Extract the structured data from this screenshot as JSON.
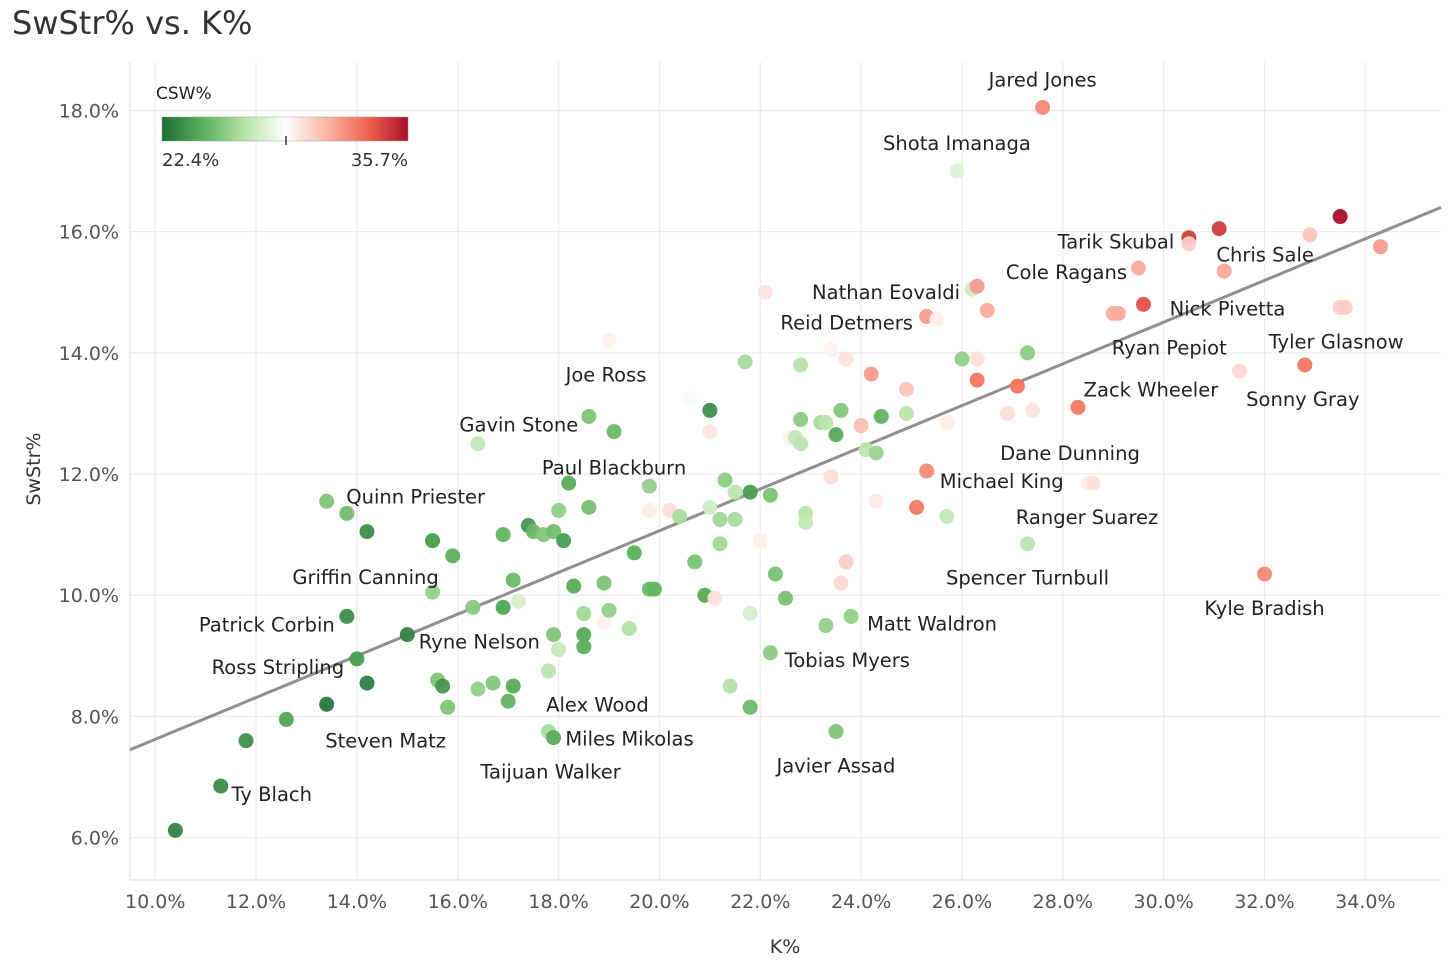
{
  "chart_data": {
    "type": "scatter",
    "title": "SwStr% vs. K%",
    "xlabel": "K%",
    "ylabel": "SwStr%",
    "xlim": [
      9.5,
      35.5
    ],
    "ylim": [
      5.3,
      18.8
    ],
    "xticks": [
      10,
      12,
      14,
      16,
      18,
      20,
      22,
      24,
      26,
      28,
      30,
      32,
      34
    ],
    "xtick_labels": [
      "10.0%",
      "12.0%",
      "14.0%",
      "16.0%",
      "18.0%",
      "20.0%",
      "22.0%",
      "24.0%",
      "26.0%",
      "28.0%",
      "30.0%",
      "32.0%",
      "34.0%"
    ],
    "yticks": [
      6,
      8,
      10,
      12,
      14,
      16,
      18
    ],
    "ytick_labels": [
      "6.0%",
      "8.0%",
      "10.0%",
      "12.0%",
      "14.0%",
      "16.0%",
      "18.0%"
    ],
    "grid": true,
    "trendline": {
      "x1": 9.5,
      "y1": 7.45,
      "x2": 35.5,
      "y2": 16.4
    },
    "legend": {
      "title": "CSW%",
      "min_label": "22.4%",
      "max_label": "35.7%",
      "min": 22.4,
      "max": 35.7,
      "mid": 29.0,
      "colors": [
        "#1e6b38",
        "#5bb05b",
        "#b6e3a6",
        "#ffffff",
        "#fbb6a8",
        "#f0654f",
        "#a8102a"
      ]
    },
    "points": [
      {
        "name": "Jared Jones",
        "x": 27.6,
        "y": 18.05,
        "c": 32.5,
        "label_dx": 0,
        "label_anchor": "middle",
        "label_dy": -28
      },
      {
        "name": "Shota Imanaga",
        "x": 25.9,
        "y": 17.0,
        "c": 28.0,
        "label_dx": 0,
        "label_anchor": "middle",
        "label_dy": -28
      },
      {
        "name": "Chris Sale",
        "x": 31.1,
        "y": 16.05,
        "c": 34.5,
        "label_dx": 46,
        "label_anchor": "middle",
        "label_dy": 26
      },
      {
        "name": "Tarik Skubal",
        "x": 30.5,
        "y": 15.9,
        "c": 34.5,
        "label_dx": -73,
        "label_anchor": "middle",
        "label_dy": 4
      },
      {
        "name": "Cole Ragans",
        "x": 29.5,
        "y": 15.4,
        "c": 31.5,
        "label_dx": -72,
        "label_anchor": "middle",
        "label_dy": 4
      },
      {
        "name": "Nick Pivetta",
        "x": 29.6,
        "y": 14.8,
        "c": 34.0,
        "label_dx": 84,
        "label_anchor": "middle",
        "label_dy": 4
      },
      {
        "name": "Nathan Eovaldi",
        "x": 26.2,
        "y": 15.05,
        "c": 27.5,
        "label_dx": -86,
        "label_anchor": "middle",
        "label_dy": 3
      },
      {
        "name": "Reid Detmers",
        "x": 25.3,
        "y": 14.6,
        "c": 32.0,
        "label_dx": -80,
        "label_anchor": "middle",
        "label_dy": 6
      },
      {
        "name": "Ryan Pepiot",
        "x": 29.0,
        "y": 14.65,
        "c": 31.5,
        "label_dx": 56,
        "label_anchor": "middle",
        "label_dy": 34
      },
      {
        "name": "Tyler Glasnow",
        "x": 33.5,
        "y": 14.75,
        "c": 30.5,
        "label_dx": -4,
        "label_anchor": "middle",
        "label_dy": 34
      },
      {
        "name": "Sonny Gray",
        "x": 32.8,
        "y": 13.8,
        "c": 33.0,
        "label_dx": -2,
        "label_anchor": "middle",
        "label_dy": 34
      },
      {
        "name": "Zack Wheeler",
        "x": 28.3,
        "y": 13.1,
        "c": 33.0,
        "label_dx": 73,
        "label_anchor": "middle",
        "label_dy": -18
      },
      {
        "name": "Dane Dunning",
        "x": 28.3,
        "y": 12.35,
        "c": 29.5,
        "label_dx": -8,
        "label_anchor": "middle",
        "label_dy": 0,
        "hidden_point": true
      },
      {
        "name": "Michael King",
        "x": 25.3,
        "y": 12.05,
        "c": 32.5,
        "label_dx": 75,
        "label_anchor": "middle",
        "label_dy": 10
      },
      {
        "name": "Ranger Suarez",
        "x": 28.5,
        "y": 11.85,
        "c": 29.6,
        "label_dx": -1,
        "label_anchor": "middle",
        "label_dy": 34
      },
      {
        "name": "Spencer Turnbull",
        "x": 27.3,
        "y": 10.85,
        "c": 27.0,
        "label_dx": 0,
        "label_anchor": "middle",
        "label_dy": 34
      },
      {
        "name": "Kyle Bradish",
        "x": 32.0,
        "y": 10.35,
        "c": 32.5,
        "label_dx": 0,
        "label_anchor": "middle",
        "label_dy": 34
      },
      {
        "name": "Matt Waldron",
        "x": 23.8,
        "y": 9.65,
        "c": 26.0,
        "label_dx": 81,
        "label_anchor": "middle",
        "label_dy": 7
      },
      {
        "name": "Tobias Myers",
        "x": 22.2,
        "y": 9.05,
        "c": 25.8,
        "label_dx": 77,
        "label_anchor": "middle",
        "label_dy": 7
      },
      {
        "name": "Javier Assad",
        "x": 23.5,
        "y": 7.75,
        "c": 25.5,
        "label_dx": 0,
        "label_anchor": "middle",
        "label_dy": 34
      },
      {
        "name": "Alex Wood",
        "x": 20.0,
        "y": 8.2,
        "c": 28.0,
        "label_dx": -62,
        "label_anchor": "middle",
        "label_dy": 0,
        "hidden_point": true
      },
      {
        "name": "Miles Mikolas",
        "x": 17.8,
        "y": 7.75,
        "c": 26.5,
        "label_dx": 81,
        "label_anchor": "middle",
        "label_dy": 7
      },
      {
        "name": "Taijuan Walker",
        "x": 17.9,
        "y": 7.65,
        "c": 24.5,
        "label_dx": -3,
        "label_anchor": "middle",
        "label_dy": 34
      },
      {
        "name": "Joe Ross",
        "x": 19.0,
        "y": 14.2,
        "c": 29.5,
        "label_dx": -3,
        "label_anchor": "middle",
        "label_dy": 34
      },
      {
        "name": "Gavin Stone",
        "x": 18.6,
        "y": 12.95,
        "c": 25.5,
        "label_dx": -70,
        "label_anchor": "middle",
        "label_dy": 8
      },
      {
        "name": "Paul Blackburn",
        "x": 19.1,
        "y": 12.7,
        "c": 25.0,
        "label_dx": 0,
        "label_anchor": "middle",
        "label_dy": 36
      },
      {
        "name": "Quinn Priester",
        "x": 13.4,
        "y": 11.55,
        "c": 25.5,
        "label_dx": 89,
        "label_anchor": "middle",
        "label_dy": -5
      },
      {
        "name": "Griffin Canning",
        "x": 15.5,
        "y": 10.05,
        "c": 26.0,
        "label_dx": -67,
        "label_anchor": "middle",
        "label_dy": -15
      },
      {
        "name": "Patrick Corbin",
        "x": 13.8,
        "y": 9.65,
        "c": 23.5,
        "label_dx": -80,
        "label_anchor": "middle",
        "label_dy": 8
      },
      {
        "name": "Ryne Nelson",
        "x": 15.0,
        "y": 9.35,
        "c": 23.2,
        "label_dx": 72,
        "label_anchor": "middle",
        "label_dy": 7
      },
      {
        "name": "Ross Stripling",
        "x": 14.0,
        "y": 8.95,
        "c": 24.0,
        "label_dx": -79,
        "label_anchor": "middle",
        "label_dy": 8
      },
      {
        "name": "Steven Matz",
        "x": 13.4,
        "y": 8.2,
        "c": 22.8,
        "label_dx": 59,
        "label_anchor": "middle",
        "label_dy": 36
      },
      {
        "name": "Ty Blach",
        "x": 11.3,
        "y": 6.85,
        "c": 23.5,
        "label_dx": 51,
        "label_anchor": "middle",
        "label_dy": 8
      },
      {
        "name": "",
        "x": 10.4,
        "y": 6.12,
        "c": 23.2
      },
      {
        "name": "",
        "x": 11.8,
        "y": 7.6,
        "c": 23.6
      },
      {
        "name": "",
        "x": 12.6,
        "y": 7.95,
        "c": 24.3
      },
      {
        "name": "",
        "x": 14.2,
        "y": 8.55,
        "c": 23.0
      },
      {
        "name": "",
        "x": 15.6,
        "y": 8.6,
        "c": 25.5
      },
      {
        "name": "",
        "x": 15.7,
        "y": 8.5,
        "c": 23.8
      },
      {
        "name": "",
        "x": 15.8,
        "y": 8.15,
        "c": 25.5
      },
      {
        "name": "",
        "x": 16.4,
        "y": 8.45,
        "c": 26.0
      },
      {
        "name": "",
        "x": 16.7,
        "y": 8.55,
        "c": 25.6
      },
      {
        "name": "",
        "x": 17.0,
        "y": 8.25,
        "c": 24.8
      },
      {
        "name": "",
        "x": 17.1,
        "y": 8.5,
        "c": 24.5
      },
      {
        "name": "",
        "x": 17.8,
        "y": 8.75,
        "c": 27.0
      },
      {
        "name": "",
        "x": 17.9,
        "y": 9.35,
        "c": 25.5
      },
      {
        "name": "",
        "x": 18.0,
        "y": 9.1,
        "c": 27.3
      },
      {
        "name": "",
        "x": 18.5,
        "y": 9.35,
        "c": 24.5
      },
      {
        "name": "",
        "x": 18.5,
        "y": 9.15,
        "c": 24.6
      },
      {
        "name": "",
        "x": 18.5,
        "y": 9.7,
        "c": 26.3
      },
      {
        "name": "",
        "x": 18.9,
        "y": 9.55,
        "c": 29.5
      },
      {
        "name": "",
        "x": 19.0,
        "y": 9.75,
        "c": 26.0
      },
      {
        "name": "",
        "x": 19.4,
        "y": 9.45,
        "c": 26.8
      },
      {
        "name": "",
        "x": 16.3,
        "y": 9.8,
        "c": 25.7
      },
      {
        "name": "",
        "x": 16.9,
        "y": 9.8,
        "c": 24.3
      },
      {
        "name": "",
        "x": 17.2,
        "y": 9.9,
        "c": 27.8
      },
      {
        "name": "",
        "x": 17.1,
        "y": 10.25,
        "c": 25.0
      },
      {
        "name": "",
        "x": 18.3,
        "y": 10.15,
        "c": 24.5
      },
      {
        "name": "",
        "x": 18.9,
        "y": 10.2,
        "c": 25.4
      },
      {
        "name": "",
        "x": 19.8,
        "y": 10.1,
        "c": 25.0
      },
      {
        "name": "",
        "x": 19.9,
        "y": 10.1,
        "c": 24.8
      },
      {
        "name": "",
        "x": 19.5,
        "y": 10.7,
        "c": 24.6
      },
      {
        "name": "",
        "x": 15.5,
        "y": 10.9,
        "c": 24.0
      },
      {
        "name": "",
        "x": 15.9,
        "y": 10.65,
        "c": 24.6
      },
      {
        "name": "",
        "x": 14.2,
        "y": 11.05,
        "c": 23.5
      },
      {
        "name": "",
        "x": 13.8,
        "y": 11.35,
        "c": 25.2
      },
      {
        "name": "",
        "x": 16.9,
        "y": 11.0,
        "c": 24.8
      },
      {
        "name": "",
        "x": 17.4,
        "y": 11.15,
        "c": 23.8
      },
      {
        "name": "",
        "x": 17.5,
        "y": 11.05,
        "c": 25.0
      },
      {
        "name": "",
        "x": 17.7,
        "y": 11.0,
        "c": 25.6
      },
      {
        "name": "",
        "x": 17.9,
        "y": 11.05,
        "c": 25.2
      },
      {
        "name": "",
        "x": 18.1,
        "y": 10.9,
        "c": 24.0
      },
      {
        "name": "",
        "x": 18.0,
        "y": 11.4,
        "c": 26.0
      },
      {
        "name": "",
        "x": 18.6,
        "y": 11.45,
        "c": 25.3
      },
      {
        "name": "",
        "x": 18.2,
        "y": 11.85,
        "c": 24.5
      },
      {
        "name": "",
        "x": 19.8,
        "y": 11.8,
        "c": 26.0
      },
      {
        "name": "",
        "x": 20.2,
        "y": 11.4,
        "c": 30.0
      },
      {
        "name": "",
        "x": 19.8,
        "y": 11.4,
        "c": 29.6
      },
      {
        "name": "",
        "x": 20.4,
        "y": 11.3,
        "c": 26.5
      },
      {
        "name": "",
        "x": 16.4,
        "y": 12.5,
        "c": 27.2
      },
      {
        "name": "",
        "x": 21.0,
        "y": 13.05,
        "c": 23.5
      },
      {
        "name": "",
        "x": 21.7,
        "y": 13.85,
        "c": 26.5
      },
      {
        "name": "",
        "x": 20.6,
        "y": 13.25,
        "c": 28.8
      },
      {
        "name": "",
        "x": 21.0,
        "y": 12.7,
        "c": 29.8
      },
      {
        "name": "",
        "x": 21.0,
        "y": 11.45,
        "c": 27.6
      },
      {
        "name": "",
        "x": 21.2,
        "y": 11.25,
        "c": 26.3
      },
      {
        "name": "",
        "x": 21.3,
        "y": 11.9,
        "c": 25.8
      },
      {
        "name": "",
        "x": 21.5,
        "y": 11.25,
        "c": 26.5
      },
      {
        "name": "",
        "x": 21.5,
        "y": 11.7,
        "c": 27.0
      },
      {
        "name": "",
        "x": 21.8,
        "y": 11.7,
        "c": 24.0
      },
      {
        "name": "",
        "x": 22.2,
        "y": 11.65,
        "c": 25.4
      },
      {
        "name": "",
        "x": 21.2,
        "y": 10.85,
        "c": 26.3
      },
      {
        "name": "",
        "x": 22.0,
        "y": 10.9,
        "c": 29.6
      },
      {
        "name": "",
        "x": 20.7,
        "y": 10.55,
        "c": 25.4
      },
      {
        "name": "",
        "x": 20.9,
        "y": 10.0,
        "c": 24.4
      },
      {
        "name": "",
        "x": 21.1,
        "y": 9.95,
        "c": 29.9
      },
      {
        "name": "",
        "x": 21.8,
        "y": 9.7,
        "c": 27.8
      },
      {
        "name": "",
        "x": 22.3,
        "y": 10.35,
        "c": 25.3
      },
      {
        "name": "",
        "x": 22.5,
        "y": 9.95,
        "c": 25.3
      },
      {
        "name": "",
        "x": 21.4,
        "y": 8.5,
        "c": 26.8
      },
      {
        "name": "",
        "x": 21.8,
        "y": 8.15,
        "c": 25.0
      },
      {
        "name": "",
        "x": 22.1,
        "y": 15.0,
        "c": 29.8
      },
      {
        "name": "",
        "x": 22.6,
        "y": 12.6,
        "c": 29.6
      },
      {
        "name": "",
        "x": 22.7,
        "y": 12.6,
        "c": 27.2
      },
      {
        "name": "",
        "x": 22.8,
        "y": 12.5,
        "c": 27.0
      },
      {
        "name": "",
        "x": 22.8,
        "y": 12.9,
        "c": 25.8
      },
      {
        "name": "",
        "x": 22.8,
        "y": 13.8,
        "c": 26.8
      },
      {
        "name": "",
        "x": 22.9,
        "y": 11.35,
        "c": 27.0
      },
      {
        "name": "",
        "x": 22.9,
        "y": 11.2,
        "c": 27.2
      },
      {
        "name": "",
        "x": 23.2,
        "y": 12.85,
        "c": 26.5
      },
      {
        "name": "",
        "x": 23.3,
        "y": 12.85,
        "c": 27.0
      },
      {
        "name": "",
        "x": 23.3,
        "y": 9.5,
        "c": 26.0
      },
      {
        "name": "",
        "x": 23.4,
        "y": 14.05,
        "c": 29.5
      },
      {
        "name": "",
        "x": 23.4,
        "y": 11.95,
        "c": 30.0
      },
      {
        "name": "",
        "x": 23.5,
        "y": 12.65,
        "c": 24.5
      },
      {
        "name": "",
        "x": 23.6,
        "y": 10.2,
        "c": 30.2
      },
      {
        "name": "",
        "x": 23.7,
        "y": 10.55,
        "c": 30.5
      },
      {
        "name": "",
        "x": 23.6,
        "y": 13.05,
        "c": 25.6
      },
      {
        "name": "",
        "x": 23.7,
        "y": 13.9,
        "c": 29.9
      },
      {
        "name": "",
        "x": 24.0,
        "y": 12.8,
        "c": 31.0
      },
      {
        "name": "",
        "x": 24.1,
        "y": 12.4,
        "c": 27.0
      },
      {
        "name": "",
        "x": 24.2,
        "y": 13.65,
        "c": 32.0
      },
      {
        "name": "",
        "x": 24.3,
        "y": 12.35,
        "c": 26.2
      },
      {
        "name": "",
        "x": 24.4,
        "y": 12.95,
        "c": 24.8
      },
      {
        "name": "",
        "x": 24.3,
        "y": 11.55,
        "c": 29.7
      },
      {
        "name": "",
        "x": 24.9,
        "y": 13.4,
        "c": 30.8
      },
      {
        "name": "",
        "x": 24.9,
        "y": 13.0,
        "c": 27.0
      },
      {
        "name": "",
        "x": 25.1,
        "y": 11.45,
        "c": 33.0
      },
      {
        "name": "",
        "x": 25.5,
        "y": 14.55,
        "c": 29.6
      },
      {
        "name": "",
        "x": 25.7,
        "y": 12.85,
        "c": 29.6
      },
      {
        "name": "",
        "x": 25.7,
        "y": 11.3,
        "c": 27.2
      },
      {
        "name": "",
        "x": 26.0,
        "y": 13.9,
        "c": 26.0
      },
      {
        "name": "",
        "x": 26.3,
        "y": 15.1,
        "c": 32.0
      },
      {
        "name": "",
        "x": 26.3,
        "y": 13.9,
        "c": 30.0
      },
      {
        "name": "",
        "x": 26.3,
        "y": 13.55,
        "c": 33.0
      },
      {
        "name": "",
        "x": 26.5,
        "y": 14.7,
        "c": 31.5
      },
      {
        "name": "",
        "x": 26.9,
        "y": 13.0,
        "c": 30.0
      },
      {
        "name": "",
        "x": 27.1,
        "y": 13.45,
        "c": 33.0
      },
      {
        "name": "",
        "x": 27.3,
        "y": 14.0,
        "c": 25.8
      },
      {
        "name": "",
        "x": 27.4,
        "y": 13.05,
        "c": 29.8
      },
      {
        "name": "",
        "x": 28.6,
        "y": 11.85,
        "c": 30.0
      },
      {
        "name": "",
        "x": 29.1,
        "y": 14.65,
        "c": 31.6
      },
      {
        "name": "",
        "x": 30.5,
        "y": 15.8,
        "c": 30.5
      },
      {
        "name": "",
        "x": 31.2,
        "y": 15.35,
        "c": 31.6
      },
      {
        "name": "",
        "x": 31.5,
        "y": 13.7,
        "c": 30.2
      },
      {
        "name": "",
        "x": 32.9,
        "y": 15.95,
        "c": 30.8
      },
      {
        "name": "",
        "x": 33.5,
        "y": 16.25,
        "c": 35.7
      },
      {
        "name": "",
        "x": 33.6,
        "y": 14.75,
        "c": 30.6
      },
      {
        "name": "",
        "x": 34.3,
        "y": 15.75,
        "c": 32.0
      }
    ]
  }
}
